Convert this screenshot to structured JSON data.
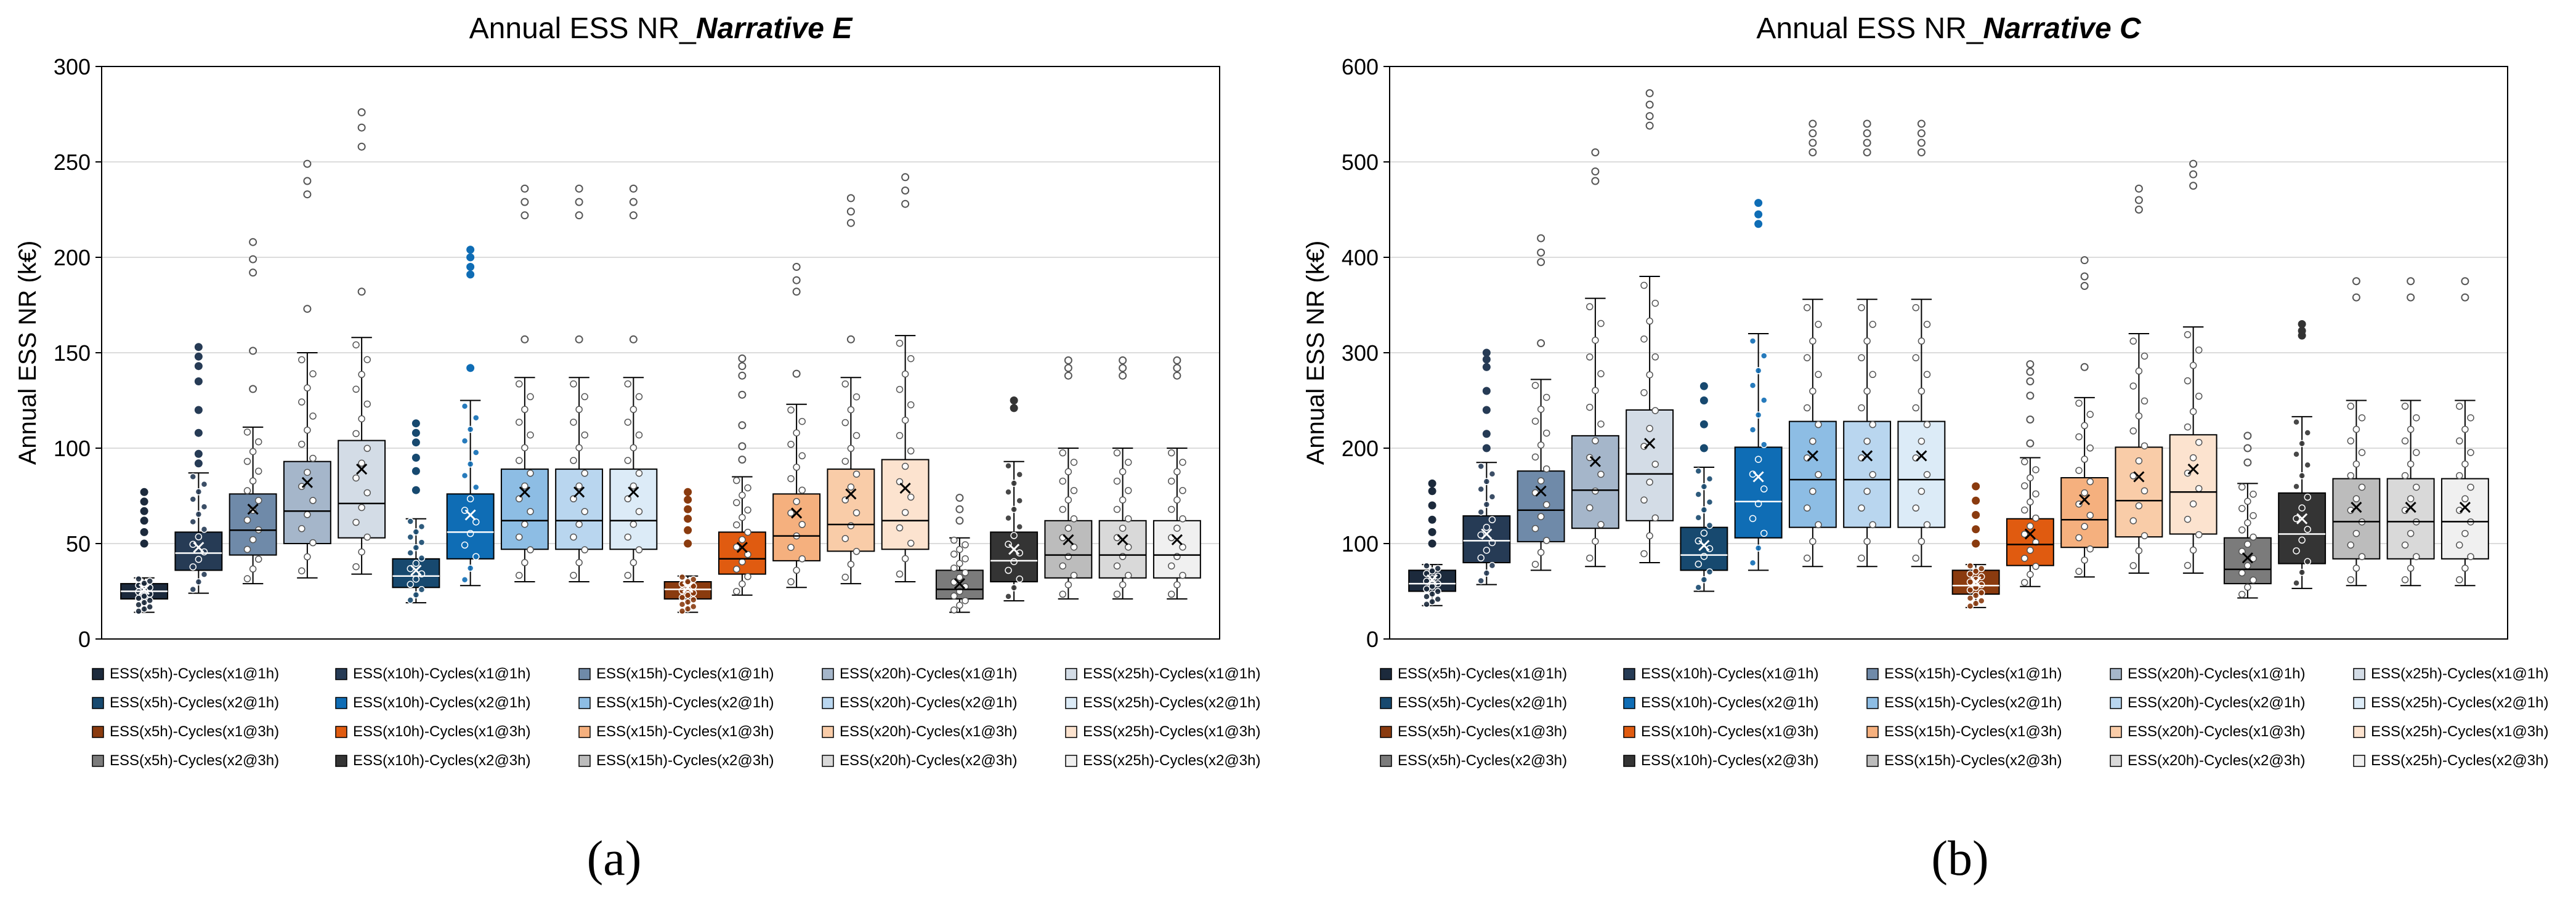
{
  "chart_data": [
    {
      "type": "box",
      "title_prefix": "Annual ESS NR_",
      "title_emphasis": "Narrative E",
      "ylabel": "Annual  ESS NR  (k€)",
      "ylim": [
        0,
        300
      ],
      "yticks": [
        "0",
        "50",
        "100",
        "150",
        "200",
        "250",
        "300"
      ],
      "sublabel": "(a)",
      "series": [
        {
          "name": "ESS(x5h)-Cycles(x1@1h)",
          "color": "#1c2a3c",
          "q1": 21,
          "median": 25,
          "q3": 29,
          "mean": 26,
          "lo": 14,
          "hi": 32,
          "outliers": [
            50,
            56,
            62,
            67,
            72,
            77
          ]
        },
        {
          "name": "ESS(x10h)-Cycles(x1@1h)",
          "color": "#263b55",
          "q1": 36,
          "median": 45,
          "q3": 56,
          "mean": 48,
          "lo": 24,
          "hi": 87,
          "outliers": [
            92,
            97,
            108,
            120,
            135,
            143,
            148,
            153
          ]
        },
        {
          "name": "ESS(x15h)-Cycles(x1@1h)",
          "color": "#6f8aa9",
          "q1": 44,
          "median": 57,
          "q3": 76,
          "mean": 68,
          "lo": 29,
          "hi": 111,
          "outliers": [
            131,
            151,
            192,
            199,
            208
          ]
        },
        {
          "name": "ESS(x20h)-Cycles(x1@1h)",
          "color": "#a5b6ca",
          "q1": 50,
          "median": 67,
          "q3": 93,
          "mean": 82,
          "lo": 32,
          "hi": 150,
          "outliers": [
            173,
            233,
            240,
            249
          ]
        },
        {
          "name": "ESS(x25h)-Cycles(x1@1h)",
          "color": "#d3dce6",
          "q1": 53,
          "median": 71,
          "q3": 104,
          "mean": 89,
          "lo": 34,
          "hi": 158,
          "outliers": [
            182,
            258,
            268,
            276
          ]
        },
        {
          "name": "ESS(x5h)-Cycles(x2@1h)",
          "color": "#17496f",
          "q1": 27,
          "median": 33,
          "q3": 42,
          "mean": 36,
          "lo": 19,
          "hi": 63,
          "outliers": [
            78,
            88,
            95,
            103,
            108,
            113
          ]
        },
        {
          "name": "ESS(x10h)-Cycles(x2@1h)",
          "color": "#0f6db5",
          "q1": 42,
          "median": 56,
          "q3": 76,
          "mean": 65,
          "lo": 28,
          "hi": 125,
          "outliers": [
            142,
            191,
            195,
            200,
            204
          ]
        },
        {
          "name": "ESS(x15h)-Cycles(x2@1h)",
          "color": "#8dbde4",
          "q1": 47,
          "median": 62,
          "q3": 89,
          "mean": 77,
          "lo": 30,
          "hi": 137,
          "outliers": [
            157,
            222,
            229,
            236
          ]
        },
        {
          "name": "ESS(x20h)-Cycles(x2@1h)",
          "color": "#b9d6ef",
          "q1": 47,
          "median": 62,
          "q3": 89,
          "mean": 77,
          "lo": 30,
          "hi": 137,
          "outliers": [
            157,
            222,
            229,
            236
          ]
        },
        {
          "name": "ESS(x25h)-Cycles(x2@1h)",
          "color": "#dcebf7",
          "q1": 47,
          "median": 62,
          "q3": 89,
          "mean": 77,
          "lo": 30,
          "hi": 137,
          "outliers": [
            157,
            222,
            229,
            236
          ]
        },
        {
          "name": "ESS(x5h)-Cycles(x1@3h)",
          "color": "#8a3b0f",
          "q1": 21,
          "median": 26,
          "q3": 30,
          "mean": 27,
          "lo": 14,
          "hi": 33,
          "outliers": [
            50,
            57,
            63,
            68,
            73,
            77
          ]
        },
        {
          "name": "ESS(x10h)-Cycles(x1@3h)",
          "color": "#e05b10",
          "q1": 34,
          "median": 42,
          "q3": 56,
          "mean": 48,
          "lo": 23,
          "hi": 85,
          "outliers": [
            94,
            101,
            112,
            128,
            138,
            143,
            147
          ]
        },
        {
          "name": "ESS(x15h)-Cycles(x1@3h)",
          "color": "#f5b07e",
          "q1": 41,
          "median": 54,
          "q3": 76,
          "mean": 66,
          "lo": 27,
          "hi": 123,
          "outliers": [
            139,
            182,
            188,
            195
          ]
        },
        {
          "name": "ESS(x20h)-Cycles(x1@3h)",
          "color": "#f9cca8",
          "q1": 46,
          "median": 60,
          "q3": 89,
          "mean": 76,
          "lo": 29,
          "hi": 137,
          "outliers": [
            157,
            218,
            224,
            231
          ]
        },
        {
          "name": "ESS(x25h)-Cycles(x1@3h)",
          "color": "#fce3cf",
          "q1": 47,
          "median": 62,
          "q3": 94,
          "mean": 79,
          "lo": 30,
          "hi": 159,
          "outliers": [
            228,
            235,
            242
          ]
        },
        {
          "name": "ESS(x5h)-Cycles(x2@3h)",
          "color": "#7b7b7b",
          "q1": 21,
          "median": 26,
          "q3": 36,
          "mean": 29,
          "lo": 14,
          "hi": 53,
          "outliers": [
            62,
            68,
            74
          ]
        },
        {
          "name": "ESS(x10h)-Cycles(x2@3h)",
          "color": "#343434",
          "q1": 30,
          "median": 41,
          "q3": 56,
          "mean": 47,
          "lo": 20,
          "hi": 93,
          "outliers": [
            121,
            125
          ]
        },
        {
          "name": "ESS(x15h)-Cycles(x2@3h)",
          "color": "#bcbcbc",
          "q1": 32,
          "median": 44,
          "q3": 62,
          "mean": 52,
          "lo": 21,
          "hi": 100,
          "outliers": [
            138,
            142,
            146
          ]
        },
        {
          "name": "ESS(x20h)-Cycles(x2@3h)",
          "color": "#d9d9d9",
          "q1": 32,
          "median": 44,
          "q3": 62,
          "mean": 52,
          "lo": 21,
          "hi": 100,
          "outliers": [
            138,
            142,
            146
          ]
        },
        {
          "name": "ESS(x25h)-Cycles(x2@3h)",
          "color": "#f0f0f0",
          "q1": 32,
          "median": 44,
          "q3": 62,
          "mean": 52,
          "lo": 21,
          "hi": 100,
          "outliers": [
            138,
            142,
            146
          ]
        }
      ]
    },
    {
      "type": "box",
      "title_prefix": "Annual ESS NR_",
      "title_emphasis": "Narrative C",
      "ylabel": "Annual  ESS NR  (k€)",
      "ylim": [
        0,
        600
      ],
      "yticks": [
        "0",
        "100",
        "200",
        "300",
        "400",
        "500",
        "600"
      ],
      "sublabel": "(b)",
      "series": [
        {
          "name": "ESS(x5h)-Cycles(x1@1h)",
          "color": "#1c2a3c",
          "q1": 50,
          "median": 58,
          "q3": 72,
          "mean": 62,
          "lo": 35,
          "hi": 78,
          "outliers": [
            100,
            112,
            125,
            140,
            155,
            163
          ]
        },
        {
          "name": "ESS(x10h)-Cycles(x1@1h)",
          "color": "#263b55",
          "q1": 80,
          "median": 103,
          "q3": 129,
          "mean": 110,
          "lo": 57,
          "hi": 185,
          "outliers": [
            200,
            215,
            240,
            260,
            285,
            293,
            300
          ]
        },
        {
          "name": "ESS(x15h)-Cycles(x1@1h)",
          "color": "#6f8aa9",
          "q1": 102,
          "median": 135,
          "q3": 176,
          "mean": 155,
          "lo": 72,
          "hi": 272,
          "outliers": [
            310,
            395,
            405,
            420
          ]
        },
        {
          "name": "ESS(x20h)-Cycles(x1@1h)",
          "color": "#a5b6ca",
          "q1": 116,
          "median": 156,
          "q3": 213,
          "mean": 186,
          "lo": 76,
          "hi": 357,
          "outliers": [
            480,
            490,
            510
          ]
        },
        {
          "name": "ESS(x25h)-Cycles(x1@1h)",
          "color": "#d3dce6",
          "q1": 124,
          "median": 173,
          "q3": 240,
          "mean": 205,
          "lo": 80,
          "hi": 380,
          "outliers": [
            538,
            548,
            560,
            572
          ]
        },
        {
          "name": "ESS(x5h)-Cycles(x2@1h)",
          "color": "#17496f",
          "q1": 72,
          "median": 88,
          "q3": 117,
          "mean": 98,
          "lo": 50,
          "hi": 180,
          "outliers": [
            200,
            225,
            250,
            265
          ]
        },
        {
          "name": "ESS(x10h)-Cycles(x2@1h)",
          "color": "#0f6db5",
          "q1": 106,
          "median": 144,
          "q3": 201,
          "mean": 170,
          "lo": 72,
          "hi": 320,
          "outliers": [
            435,
            445,
            457
          ]
        },
        {
          "name": "ESS(x15h)-Cycles(x2@1h)",
          "color": "#8dbde4",
          "q1": 117,
          "median": 167,
          "q3": 228,
          "mean": 192,
          "lo": 76,
          "hi": 356,
          "outliers": [
            510,
            520,
            530,
            540
          ]
        },
        {
          "name": "ESS(x20h)-Cycles(x2@1h)",
          "color": "#b9d6ef",
          "q1": 117,
          "median": 167,
          "q3": 228,
          "mean": 192,
          "lo": 76,
          "hi": 356,
          "outliers": [
            510,
            520,
            530,
            540
          ]
        },
        {
          "name": "ESS(x25h)-Cycles(x2@1h)",
          "color": "#dcebf7",
          "q1": 117,
          "median": 167,
          "q3": 228,
          "mean": 192,
          "lo": 76,
          "hi": 356,
          "outliers": [
            510,
            520,
            530,
            540
          ]
        },
        {
          "name": "ESS(x5h)-Cycles(x1@3h)",
          "color": "#8a3b0f",
          "q1": 47,
          "median": 56,
          "q3": 72,
          "mean": 60,
          "lo": 33,
          "hi": 78,
          "outliers": [
            100,
            115,
            130,
            145,
            160
          ]
        },
        {
          "name": "ESS(x10h)-Cycles(x1@3h)",
          "color": "#e05b10",
          "q1": 77,
          "median": 99,
          "q3": 126,
          "mean": 110,
          "lo": 55,
          "hi": 190,
          "outliers": [
            205,
            230,
            255,
            270,
            280,
            288
          ]
        },
        {
          "name": "ESS(x15h)-Cycles(x1@3h)",
          "color": "#f5b07e",
          "q1": 96,
          "median": 125,
          "q3": 169,
          "mean": 146,
          "lo": 65,
          "hi": 253,
          "outliers": [
            285,
            370,
            380,
            397
          ]
        },
        {
          "name": "ESS(x20h)-Cycles(x1@3h)",
          "color": "#f9cca8",
          "q1": 107,
          "median": 145,
          "q3": 201,
          "mean": 170,
          "lo": 69,
          "hi": 320,
          "outliers": [
            450,
            460,
            472
          ]
        },
        {
          "name": "ESS(x25h)-Cycles(x1@3h)",
          "color": "#fce3cf",
          "q1": 110,
          "median": 154,
          "q3": 214,
          "mean": 178,
          "lo": 69,
          "hi": 327,
          "outliers": [
            475,
            487,
            498
          ]
        },
        {
          "name": "ESS(x5h)-Cycles(x2@3h)",
          "color": "#7b7b7b",
          "q1": 58,
          "median": 73,
          "q3": 106,
          "mean": 85,
          "lo": 43,
          "hi": 163,
          "outliers": [
            185,
            200,
            213
          ]
        },
        {
          "name": "ESS(x10h)-Cycles(x2@3h)",
          "color": "#343434",
          "q1": 79,
          "median": 110,
          "q3": 153,
          "mean": 126,
          "lo": 53,
          "hi": 233,
          "outliers": [
            318,
            323,
            330
          ]
        },
        {
          "name": "ESS(x15h)-Cycles(x2@3h)",
          "color": "#bcbcbc",
          "q1": 84,
          "median": 123,
          "q3": 168,
          "mean": 138,
          "lo": 56,
          "hi": 250,
          "outliers": [
            358,
            375
          ]
        },
        {
          "name": "ESS(x20h)-Cycles(x2@3h)",
          "color": "#d9d9d9",
          "q1": 84,
          "median": 123,
          "q3": 168,
          "mean": 138,
          "lo": 56,
          "hi": 250,
          "outliers": [
            358,
            375
          ]
        },
        {
          "name": "ESS(x25h)-Cycles(x2@3h)",
          "color": "#f0f0f0",
          "q1": 84,
          "median": 123,
          "q3": 168,
          "mean": 138,
          "lo": 56,
          "hi": 250,
          "outliers": [
            358,
            375
          ]
        }
      ]
    }
  ]
}
